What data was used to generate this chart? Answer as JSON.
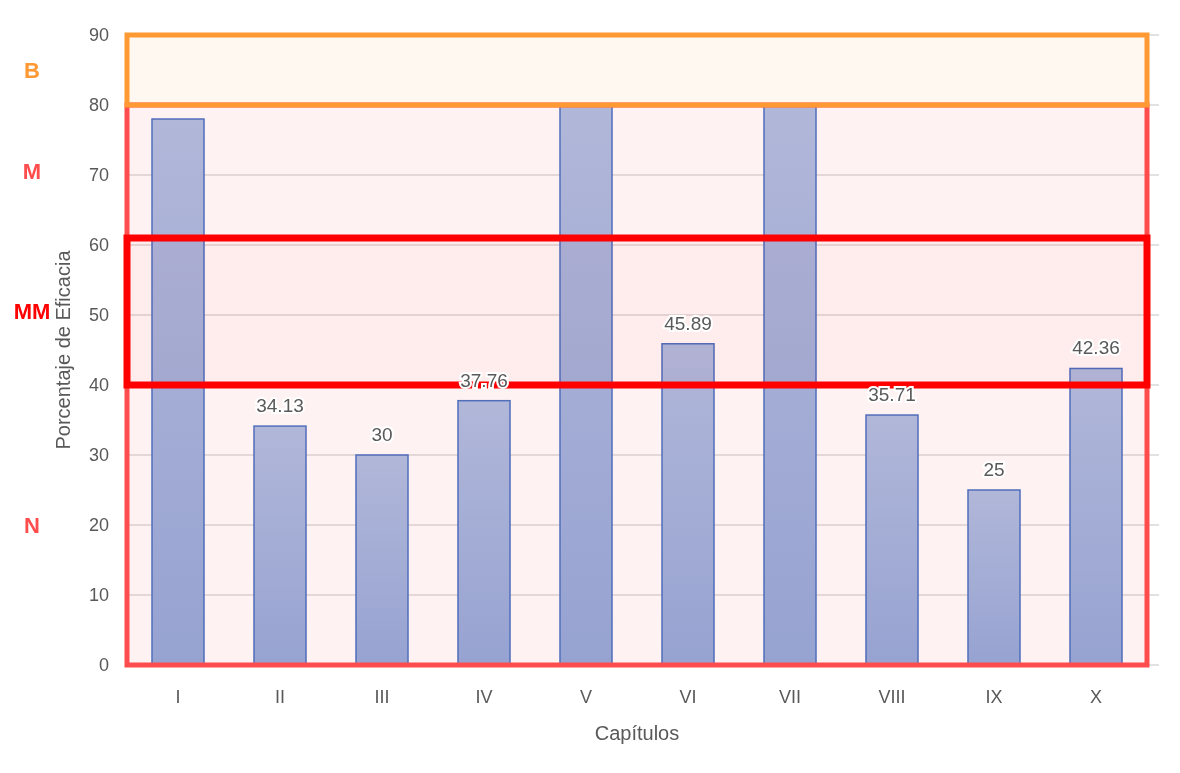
{
  "chart_data": {
    "type": "bar",
    "xlabel": "Capítulos",
    "ylabel": "Porcentaje de Eficacia",
    "categories": [
      "I",
      "II",
      "III",
      "IV",
      "V",
      "VI",
      "VII",
      "VIII",
      "IX",
      "X"
    ],
    "values": [
      78,
      34.13,
      30,
      37.76,
      80,
      45.89,
      80,
      35.71,
      25,
      42.36
    ],
    "value_labels": [
      null,
      "34.13",
      "30",
      "37.76",
      null,
      "45.89",
      null,
      "35.71",
      "25",
      "42.36"
    ],
    "color": "#4472c4",
    "ylim": [
      0,
      90
    ],
    "yticks": [
      0,
      10,
      20,
      30,
      40,
      50,
      60,
      70,
      80,
      90
    ],
    "grid": "y",
    "bands": [
      {
        "axis": "y",
        "from": 0,
        "to": 40,
        "label": "N",
        "color": "#ff4d4d"
      },
      {
        "axis": "y",
        "from": 61,
        "to": 80,
        "label": "M",
        "color": "#ff4d4d"
      },
      {
        "axis": "y",
        "from": 80,
        "to": 90,
        "label": "B",
        "color": "#ff9933"
      },
      {
        "axis": "y",
        "from": 40,
        "to": 61,
        "label": "MM",
        "color": "#ff0000"
      }
    ]
  }
}
